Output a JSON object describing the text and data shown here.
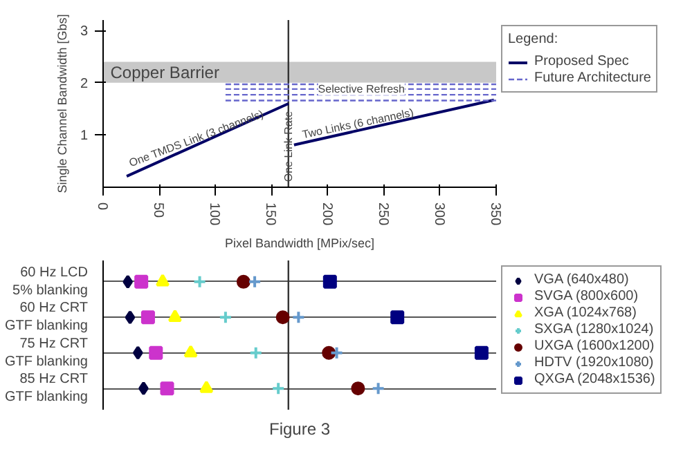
{
  "chart_data": [
    {
      "type": "line",
      "xlabel": "Pixel Bandwidth [MPix/sec]",
      "ylabel": "Single Channel Bandwidth [Gbs]",
      "xlim": [
        0,
        350
      ],
      "xticks": [
        0,
        50,
        100,
        150,
        200,
        250,
        300,
        350
      ],
      "ylim": [
        0,
        3.2
      ],
      "yticks": [
        1,
        2,
        3
      ],
      "grid": false,
      "legend": "right",
      "legend_title": "Legend:",
      "series": [
        {
          "name": "Proposed Spec",
          "color": "#000066",
          "line_style": "solid",
          "x": [
            21,
            165,
            167,
            170,
            348
          ],
          "values": [
            0.21,
            1.6,
            null,
            0.81,
            1.67
          ]
        },
        {
          "name": "Future Architecture",
          "color": "#6666cc",
          "line_style": "dashed",
          "x": [
            109,
            350
          ],
          "values": [
            1.97,
            1.97
          ]
        },
        {
          "color": "#6666cc",
          "line_style": "dashed",
          "x": [
            109,
            350
          ],
          "values": [
            1.88,
            1.88
          ]
        },
        {
          "color": "#6666cc",
          "line_style": "dashed",
          "x": [
            109,
            350
          ],
          "values": [
            1.77,
            1.77
          ]
        },
        {
          "color": "#6666cc",
          "line_style": "dashed",
          "x": [
            109,
            350
          ],
          "values": [
            1.66,
            1.66
          ]
        }
      ],
      "bands": [
        {
          "axis": "y",
          "from": 2,
          "to": 2.4,
          "label": "Copper Barrier",
          "color": "#c8c8c8"
        }
      ],
      "ref_lines": [
        {
          "axis": "x",
          "value": 165,
          "label": "One Link Rate",
          "color": "#333333"
        }
      ],
      "annotations": [
        {
          "text": "One TMDS Link (3 channels)",
          "x": 85,
          "y": 0.82
        },
        {
          "text": "Two Links (6 channels)",
          "x": 228,
          "y": 1.1
        },
        {
          "text": "Selective Refresh",
          "x": 230,
          "y": 1.88
        }
      ]
    },
    {
      "type": "scatter",
      "orientation": "horizontal",
      "categories": [
        "60 Hz LCD\n5% blanking",
        "60 Hz CRT\nGTF blanking",
        "75 Hz CRT\nGTF blanking",
        "85 Hz CRT\nGTF blanking"
      ],
      "xlim": [
        0,
        350
      ],
      "tick_labels": "y",
      "grid": "y",
      "legend": "right",
      "ref_lines": [
        {
          "axis": "x",
          "value": 165,
          "color": "#333333"
        }
      ],
      "series": [
        {
          "name": "VGA (640x480)",
          "color": "#000040",
          "marker": "diamond",
          "values": [
            22,
            24,
            31,
            36
          ]
        },
        {
          "name": "SVGA (800x600)",
          "color": "#cc33cc",
          "marker": "square",
          "values": [
            34,
            40,
            47,
            57
          ]
        },
        {
          "name": "XGA (1024x768)",
          "color": "#ffff00",
          "marker": "triangle",
          "values": [
            53,
            64,
            78,
            92
          ]
        },
        {
          "name": "SXGA (1280x1024)",
          "color": "#66cccc",
          "marker": "cross",
          "values": [
            86,
            109,
            136,
            156
          ]
        },
        {
          "name": "UXGA (1600x1200)",
          "color": "#660000",
          "marker": "circle",
          "values": [
            125,
            160,
            201,
            227
          ]
        },
        {
          "name": "HDTV (1920x1080)",
          "color": "#6699cc",
          "marker": "cross",
          "values": [
            135,
            174,
            208,
            245
          ]
        },
        {
          "name": "QXGA (2048x1536)",
          "color": "#000080",
          "marker": "square",
          "values": [
            202,
            262,
            337,
            null
          ]
        }
      ],
      "annotations": [
        "Figure 3"
      ]
    }
  ]
}
